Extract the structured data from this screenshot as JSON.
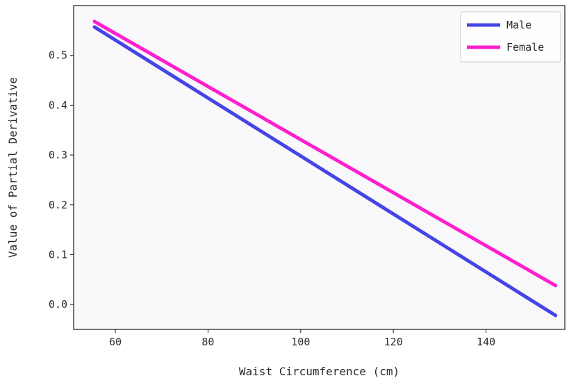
{
  "chart_data": {
    "type": "line",
    "title": "",
    "xlabel": "Waist Circumference (cm)",
    "ylabel": "Value of Partial Derivative",
    "xlim": [
      51,
      157
    ],
    "ylim": [
      -0.05,
      0.6
    ],
    "xticks": [
      60,
      80,
      100,
      120,
      140
    ],
    "xtick_labels": [
      "60",
      "80",
      "100",
      "120",
      "140"
    ],
    "yticks": [
      0.0,
      0.1,
      0.2,
      0.3,
      0.4,
      0.5
    ],
    "ytick_labels": [
      "0.0",
      "0.1",
      "0.2",
      "0.3",
      "0.4",
      "0.5"
    ],
    "grid": false,
    "legend_position": "top-right",
    "background_color": "#f9f8fa",
    "series": [
      {
        "name": "Male",
        "color": "#4545e6",
        "x": [
          55.5,
          155
        ],
        "y": [
          0.557,
          -0.022
        ]
      },
      {
        "name": "Female",
        "color": "#ff1fcf",
        "x": [
          55.5,
          155
        ],
        "y": [
          0.568,
          0.038
        ]
      }
    ]
  }
}
